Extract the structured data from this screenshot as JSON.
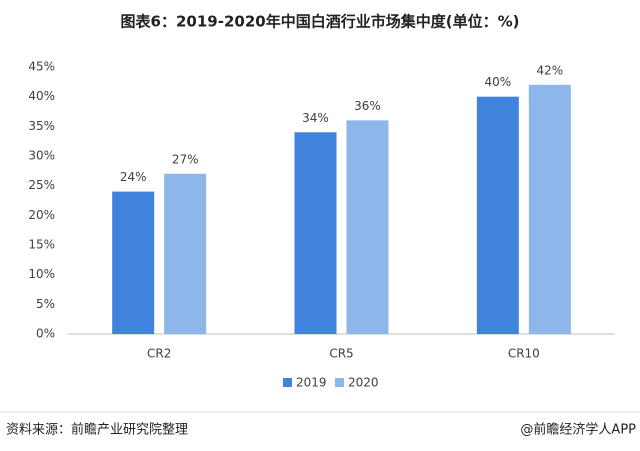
{
  "chart_data": {
    "type": "bar",
    "title": "图表6：2019-2020年中国白酒行业市场集中度(单位：%)",
    "categories": [
      "CR2",
      "CR5",
      "CR10"
    ],
    "series": [
      {
        "name": "2019",
        "color": "#3f83dc",
        "values": [
          24,
          34,
          40
        ],
        "value_labels": [
          "24%",
          "34%",
          "40%"
        ]
      },
      {
        "name": "2020",
        "color": "#8db6ea",
        "values": [
          27,
          36,
          42
        ],
        "value_labels": [
          "27%",
          "36%",
          "42%"
        ]
      }
    ],
    "ylim": [
      0,
      45
    ],
    "yticks": [
      {
        "value": 0,
        "label": "0%"
      },
      {
        "value": 5,
        "label": "5%"
      },
      {
        "value": 10,
        "label": "10%"
      },
      {
        "value": 15,
        "label": "15%"
      },
      {
        "value": 20,
        "label": "20%"
      },
      {
        "value": 25,
        "label": "25%"
      },
      {
        "value": 30,
        "label": "30%"
      },
      {
        "value": 35,
        "label": "35%"
      },
      {
        "value": 40,
        "label": "40%"
      },
      {
        "value": 45,
        "label": "45%"
      }
    ],
    "grid": false,
    "source": "资料来源：前瞻产业研究院整理",
    "credit": "@前瞻经济学人APP"
  }
}
